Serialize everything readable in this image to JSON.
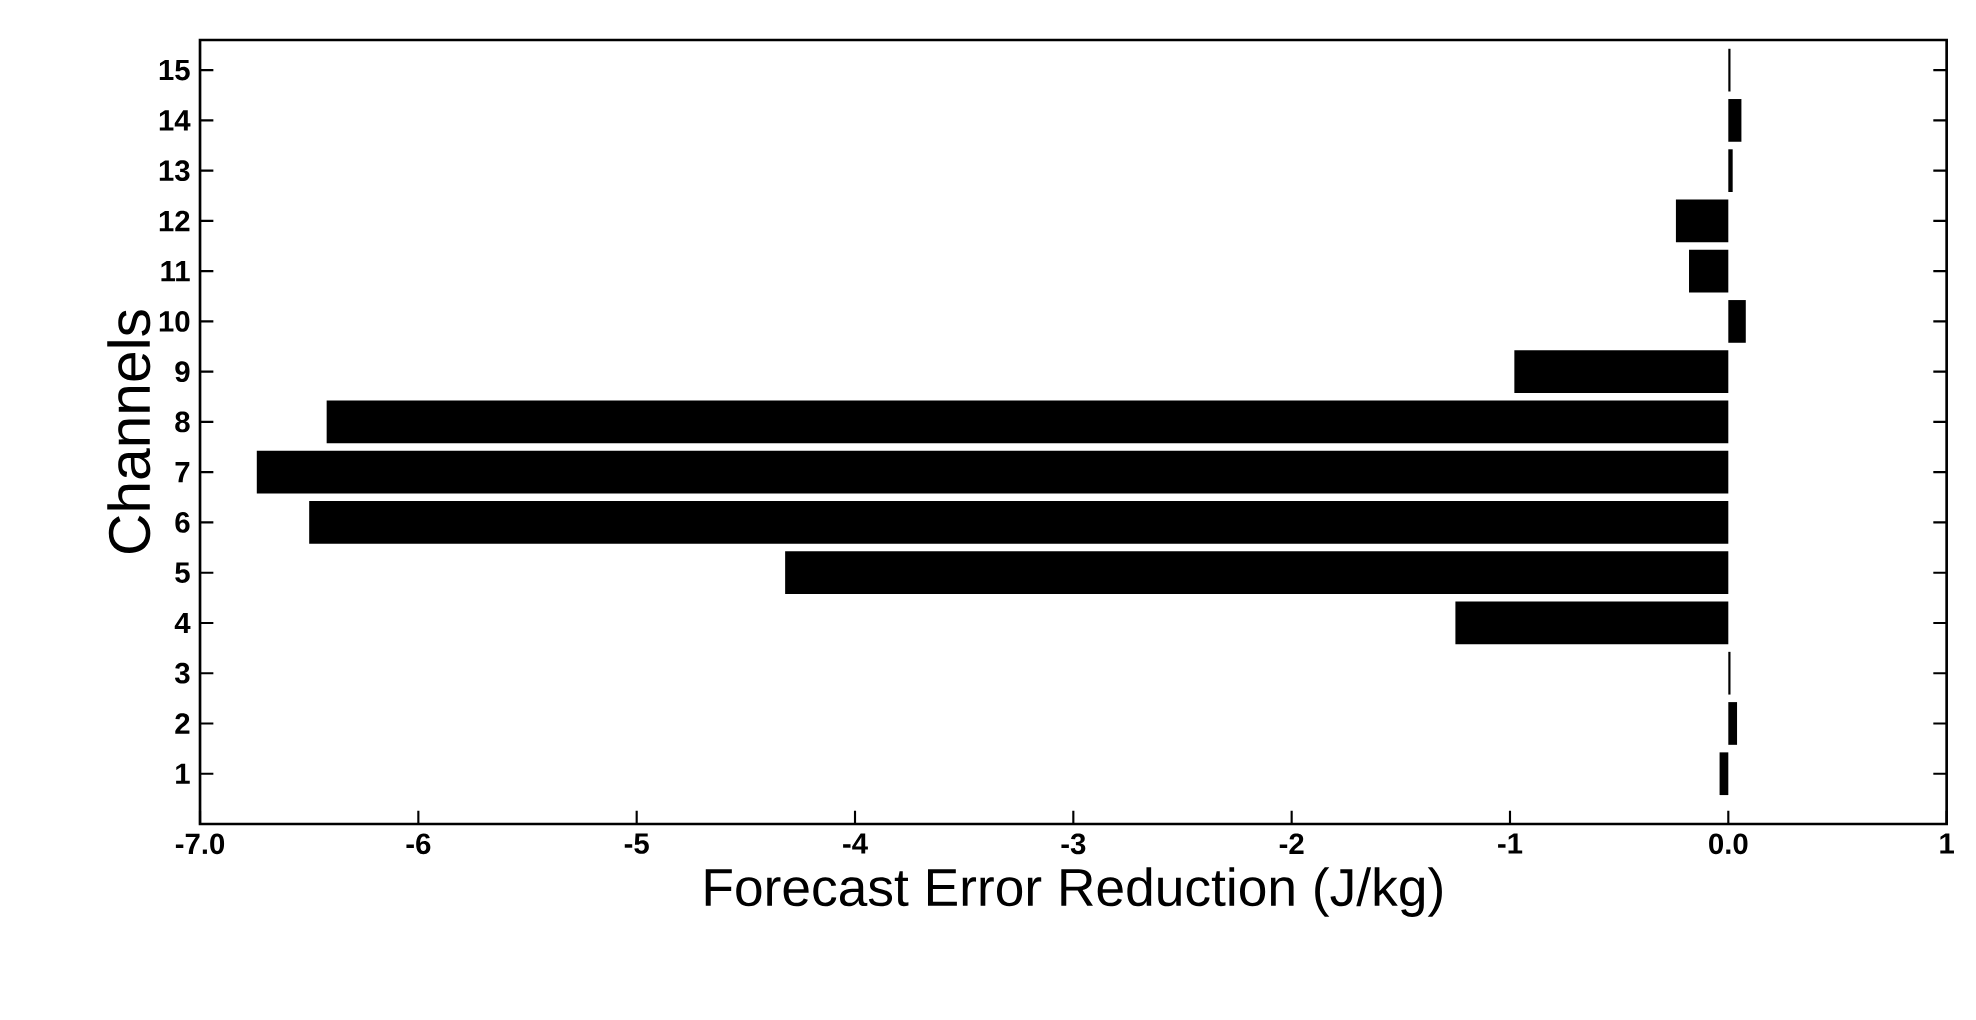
{
  "chart_data": {
    "type": "bar",
    "orientation": "horizontal",
    "xlabel": "Forecast Error Reduction (J/kg)",
    "ylabel": "Channels",
    "categories": [
      "15",
      "14",
      "13",
      "12",
      "11",
      "10",
      "9",
      "8",
      "7",
      "6",
      "5",
      "4",
      "3",
      "2",
      "1"
    ],
    "values": [
      0.01,
      0.06,
      0.02,
      -0.24,
      -0.18,
      0.08,
      -0.98,
      -6.42,
      -6.74,
      -6.5,
      -4.32,
      -1.25,
      0.01,
      0.04,
      -0.04
    ],
    "color": "#000000",
    "xlim": [
      -7,
      1
    ],
    "xticks": [
      {
        "value": -7,
        "label": "-7.0"
      },
      -6,
      -5,
      -4,
      -3,
      -2,
      -1,
      {
        "value": 0,
        "label": "0.0"
      },
      1
    ]
  }
}
